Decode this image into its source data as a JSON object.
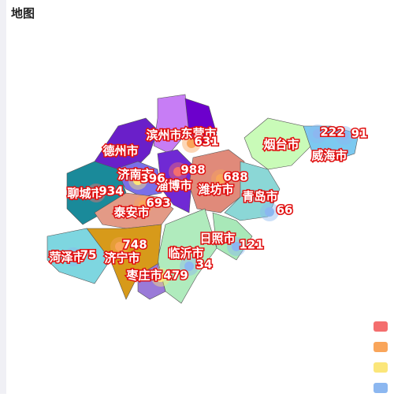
{
  "title": "地图",
  "map": {
    "regions": [
      {
        "name": "德州市",
        "color": "#6a1fc9"
      },
      {
        "name": "滨州市",
        "color": "#c77df5"
      },
      {
        "name": "东营市",
        "color": "#6c00cc"
      },
      {
        "name": "烟台市",
        "color": "#c9fbb8"
      },
      {
        "name": "威海市",
        "color": "#7cc9f0"
      },
      {
        "name": "济南市",
        "color": "#7a6fe8"
      },
      {
        "name": "淄博市",
        "color": "#7029d4"
      },
      {
        "name": "潍坊市",
        "color": "#e08a7a"
      },
      {
        "name": "青岛市",
        "color": "#8bd7d6"
      },
      {
        "name": "聊城市",
        "color": "#1a8a9a"
      },
      {
        "name": "泰安市",
        "color": "#e39a86"
      },
      {
        "name": "日照市",
        "color": "#a8e8b8"
      },
      {
        "name": "临沂市",
        "color": "#b0ebbd"
      },
      {
        "name": "济宁市",
        "color": "#d79a1a"
      },
      {
        "name": "菏泽市",
        "color": "#7ed6e0"
      },
      {
        "name": "枣庄市",
        "color": "#9a7ad8"
      }
    ],
    "points": [
      {
        "value": 631,
        "color": "#f9a55a"
      },
      {
        "value": 222,
        "color": "#8cb7f0"
      },
      {
        "value": 91,
        "color": "#8cb7f0"
      },
      {
        "value": 988,
        "color": "#f46e6e"
      },
      {
        "value": 396,
        "color": "#fbe67a"
      },
      {
        "value": 688,
        "color": "#f9a55a"
      },
      {
        "value": 934,
        "color": "#f46e6e"
      },
      {
        "value": 693,
        "color": "#f9a55a"
      },
      {
        "value": 66,
        "color": "#8cb7f0"
      },
      {
        "value": 121,
        "color": "#8cb7f0"
      },
      {
        "value": 748,
        "color": "#f9a55a"
      },
      {
        "value": 75,
        "color": "#8cb7f0"
      },
      {
        "value": 34,
        "color": "#8cb7f0"
      },
      {
        "value": 479,
        "color": "#fbe67a"
      }
    ]
  },
  "legend": {
    "colors": [
      "#f46e6e",
      "#f9a55a",
      "#fbe67a",
      "#8cb7f0"
    ]
  }
}
